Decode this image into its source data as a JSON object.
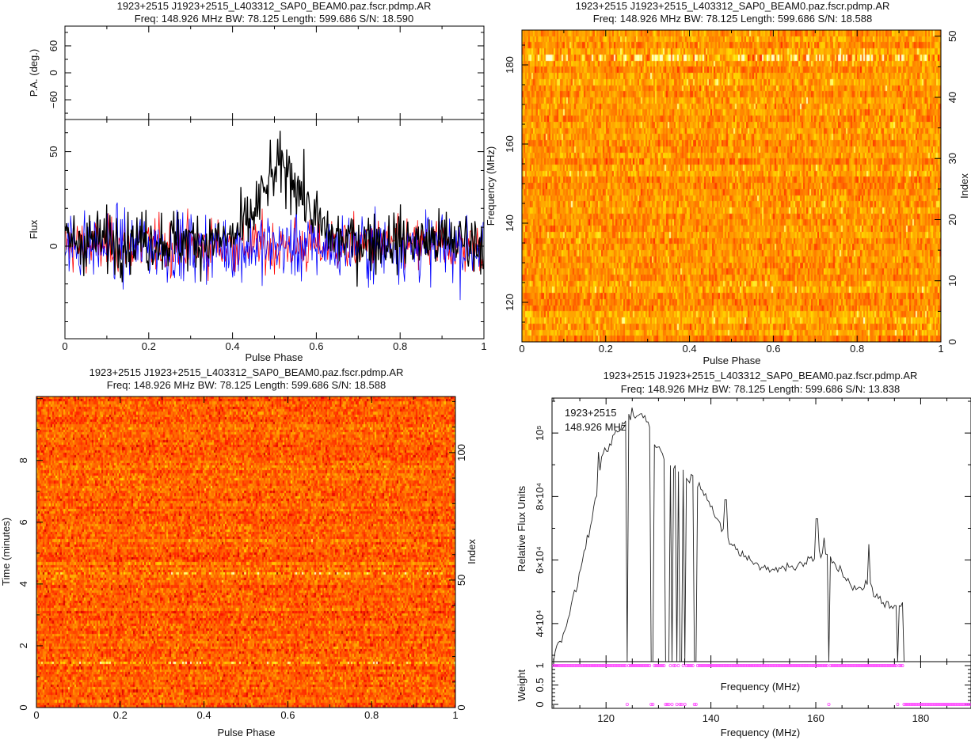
{
  "colors": {
    "axis": "#000000",
    "total_intensity": "#000000",
    "linear": "#ff0000",
    "circular": "#0000ff",
    "weights": "#ff00ff"
  },
  "chart_data": [
    {
      "type": "line",
      "title": "1923+2515 J1923+2515_L403312_SAP0_BEAM0.paz.fscr.pdmp.AR",
      "subtitle": "Freq: 148.926 MHz BW: 78.125 Length: 599.686 S/N: 18.590",
      "xlabel": "Pulse Phase",
      "ylabel": "Flux",
      "pa_ylabel": "P.A. (deg.)",
      "xlim": [
        0,
        1
      ],
      "ylim": [
        -49,
        67
      ],
      "pa_ylim": [
        -104,
        104
      ],
      "xticks": [
        "0",
        "0.2",
        "0.4",
        "0.6",
        "0.8",
        "1"
      ],
      "yticks": [
        "0",
        "50"
      ],
      "pa_yticks": [
        "−60",
        "0",
        "60"
      ],
      "series": [
        {
          "name": "Total intensity",
          "color": "#000000",
          "noise_rms": 9,
          "pulse_center": 0.52,
          "pulse_width": 0.05,
          "pulse_peak": 38
        },
        {
          "name": "Linear",
          "color": "#ff0000",
          "noise_rms": 8
        },
        {
          "name": "Circular",
          "color": "#0000ff",
          "noise_rms": 10
        }
      ]
    },
    {
      "type": "heatmap",
      "title": "1923+2515 J1923+2515_L403312_SAP0_BEAM0.paz.fscr.pdmp.AR",
      "subtitle": "Freq: 148.926 MHz BW: 78.125 Length: 599.686 S/N: 18.588",
      "xlabel": "Pulse Phase",
      "ylabel": "Frequency (MHz)",
      "y2label": "Index",
      "xlim": [
        0,
        1
      ],
      "ylim": [
        110,
        188.8
      ],
      "y2lim": [
        0,
        51
      ],
      "xticks": [
        "0",
        "0.2",
        "0.4",
        "0.6",
        "0.8",
        "1"
      ],
      "yticks": [
        "120",
        "140",
        "160",
        "180"
      ],
      "y2ticks": [
        "0",
        "10",
        "20",
        "30",
        "40",
        "50"
      ],
      "channels": 51,
      "bright_rows": [
        46
      ]
    },
    {
      "type": "heatmap",
      "title": "1923+2515 J1923+2515_L403312_SAP0_BEAM0.paz.fscr.pdmp.AR",
      "subtitle": "Freq: 148.926 MHz BW: 78.125 Length: 599.686 S/N: 18.588",
      "xlabel": "Pulse Phase",
      "ylabel": "Time (minutes)",
      "y2label": "Index",
      "xlim": [
        0,
        1
      ],
      "ylim": [
        0,
        10.07
      ],
      "y2lim": [
        0,
        122
      ],
      "xticks": [
        "0",
        "0.2",
        "0.4",
        "0.6",
        "0.8",
        "1"
      ],
      "yticks": [
        "0",
        "2",
        "4",
        "6",
        "8"
      ],
      "y2ticks": [
        "0",
        "50",
        "100"
      ],
      "subints": 122,
      "bright_rows": [
        52,
        17
      ]
    },
    {
      "type": "line",
      "title": "1923+2515 J1923+2515_L403312_SAP0_BEAM0.paz.fscr.pdmp.AR",
      "subtitle": "Freq: 148.926 MHz BW: 78.125 Length: 599.686 S/N: 13.838",
      "legend": [
        "1923+2515",
        "148.926 MHz"
      ],
      "legend_position": "top-left",
      "xlabel": "Frequency (MHz)",
      "ylabel": "Relative Flux Units",
      "weight_label": "Weight",
      "weight_xlabel": "Frequency (MHz)",
      "xlim": [
        109.7,
        189.6
      ],
      "ylim": [
        28000,
        111000
      ],
      "xticks": [
        "120",
        "140",
        "160",
        "180"
      ],
      "yticks": [
        "4×10⁴",
        "6×10⁴",
        "8×10⁴",
        "10⁵"
      ],
      "ytick_values": [
        40000,
        60000,
        80000,
        100000
      ],
      "weight_yticks": [
        "0",
        "0.5",
        "1"
      ],
      "spectrum": {
        "x": [
          110,
          111,
          112,
          113,
          114,
          115,
          116,
          117,
          118,
          119,
          120,
          121,
          122,
          123,
          124,
          125,
          126,
          127,
          128,
          129,
          130,
          131,
          132,
          133,
          134,
          135,
          136,
          137,
          138,
          139,
          140,
          141,
          142,
          143,
          144,
          145,
          146,
          147,
          148,
          149,
          150,
          151,
          152,
          153,
          154,
          155,
          156,
          157,
          158,
          159,
          160,
          161,
          162,
          163,
          164,
          165,
          166,
          167,
          168,
          169,
          170,
          171,
          172,
          173,
          174,
          175,
          176,
          177
        ],
        "y": [
          29000,
          34000,
          38000,
          43000,
          49000,
          56000,
          64000,
          70000,
          79000,
          90000,
          94000,
          97000,
          100000,
          102000,
          104000,
          106000,
          105000,
          106000,
          104000,
          97000,
          95000,
          93000,
          91000,
          89000,
          88000,
          87000,
          86000,
          85000,
          84000,
          81000,
          77000,
          73000,
          69000,
          67000,
          65000,
          63000,
          61500,
          60500,
          59500,
          58500,
          58000,
          57500,
          57000,
          57000,
          57500,
          58000,
          58500,
          59000,
          59500,
          60000,
          61000,
          62000,
          61000,
          59500,
          58000,
          56000,
          54000,
          52000,
          51000,
          50000,
          55000,
          49000,
          48000,
          47000,
          46000,
          45000,
          46000,
          45000
        ]
      },
      "spikes": {
        "x": [
          118.5,
          125,
          129,
          142.8,
          160.2,
          161.5,
          170
        ],
        "y": [
          94000,
          108000,
          107000,
          79000,
          73000,
          67000,
          65000
        ]
      },
      "zapped_channels_mhz": [
        124,
        128.5,
        129,
        131.5,
        132,
        132.5,
        133.5,
        134,
        134.5,
        135,
        137,
        162.5,
        175.5,
        177
      ],
      "zapped_band_mhz": [
        177.3,
        189.6
      ]
    }
  ]
}
